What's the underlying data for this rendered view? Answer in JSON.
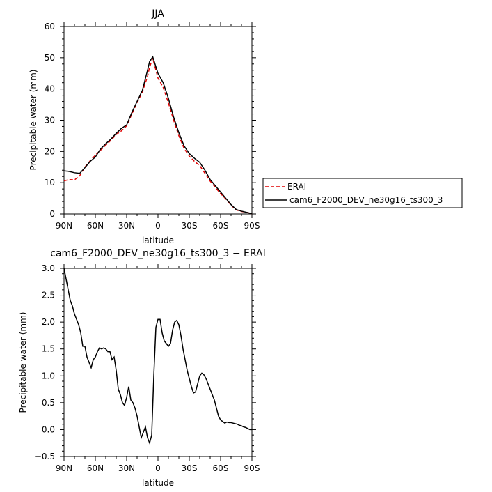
{
  "chart_data": [
    {
      "type": "line",
      "title": "JJA",
      "xlabel": "latitude",
      "ylabel": "Precipitable water (mm)",
      "xlim": [
        90,
        -90
      ],
      "ylim": [
        0,
        60
      ],
      "x_ticks": [
        90,
        60,
        30,
        0,
        -30,
        -60,
        -90
      ],
      "x_tick_labels": [
        "90N",
        "60N",
        "30N",
        "0",
        "30S",
        "60S",
        "90S"
      ],
      "y_ticks": [
        0,
        10,
        20,
        30,
        40,
        50,
        60
      ],
      "y_tick_labels": [
        "0",
        "10",
        "20",
        "30",
        "40",
        "50",
        "60"
      ],
      "legend": "right",
      "series": [
        {
          "name": "ERAI",
          "color": "#e00000",
          "dash": "dashed",
          "x": [
            90,
            85,
            80,
            75,
            70,
            65,
            60,
            55,
            50,
            45,
            40,
            35,
            30,
            25,
            20,
            15,
            10,
            8,
            5,
            0,
            -5,
            -10,
            -15,
            -20,
            -25,
            -30,
            -35,
            -40,
            -45,
            -50,
            -55,
            -60,
            -65,
            -70,
            -75,
            -80,
            -85,
            -90
          ],
          "y": [
            10.6,
            11.0,
            10.9,
            12.2,
            15.0,
            17.0,
            18.8,
            20.4,
            22.0,
            23.6,
            25.4,
            26.6,
            28.2,
            32.0,
            35.6,
            39.0,
            44.0,
            47.0,
            49.8,
            43.5,
            40.5,
            35.5,
            30.0,
            25.0,
            21.0,
            18.5,
            16.8,
            15.5,
            13.0,
            10.5,
            8.5,
            6.5,
            4.8,
            2.8,
            1.3,
            0.8,
            0.5,
            0.1
          ]
        },
        {
          "name": "cam6_F2000_DEV_ne30g16_ts300_3",
          "color": "#000000",
          "dash": "solid",
          "x": [
            90,
            85,
            80,
            75,
            70,
            65,
            60,
            55,
            50,
            45,
            40,
            35,
            30,
            25,
            20,
            15,
            10,
            8,
            5,
            0,
            -5,
            -10,
            -15,
            -20,
            -25,
            -30,
            -35,
            -40,
            -45,
            -50,
            -55,
            -60,
            -65,
            -70,
            -75,
            -80,
            -85,
            -90
          ],
          "y": [
            13.8,
            13.6,
            13.2,
            13.0,
            14.8,
            16.8,
            18.2,
            20.8,
            22.5,
            24.0,
            25.8,
            27.4,
            28.5,
            32.5,
            36.0,
            39.5,
            46.0,
            48.8,
            50.3,
            45.0,
            42.0,
            37.0,
            31.0,
            26.0,
            21.8,
            19.3,
            17.8,
            16.5,
            14.0,
            11.0,
            9.0,
            7.0,
            5.0,
            3.0,
            1.4,
            0.9,
            0.5,
            0.1
          ]
        }
      ]
    },
    {
      "type": "line",
      "title": "cam6_F2000_DEV_ne30g16_ts300_3 − ERAI",
      "xlabel": "latitude",
      "ylabel": "Precipitable water (mm)",
      "xlim": [
        90,
        -90
      ],
      "ylim": [
        -0.5,
        3.0
      ],
      "x_ticks": [
        90,
        60,
        30,
        0,
        -30,
        -60,
        -90
      ],
      "x_tick_labels": [
        "90N",
        "60N",
        "30N",
        "0",
        "30S",
        "60S",
        "90S"
      ],
      "y_ticks": [
        -0.5,
        0,
        0.5,
        1.0,
        1.5,
        2.0,
        2.5,
        3.0
      ],
      "y_tick_labels": [
        "−0.5",
        "0.0",
        "0.5",
        "1.0",
        "1.5",
        "2.0",
        "2.5",
        "3.0"
      ],
      "series": [
        {
          "color": "#000000",
          "x": [
            90,
            88,
            86,
            84,
            82,
            80,
            78,
            76,
            74,
            72,
            70,
            68,
            66,
            64,
            62,
            60,
            58,
            56,
            54,
            52,
            50,
            48,
            46,
            44,
            42,
            40,
            38,
            36,
            34,
            32,
            30,
            28,
            26,
            24,
            22,
            20,
            18,
            16,
            14,
            12,
            10,
            8,
            6,
            4,
            2,
            0,
            -2,
            -4,
            -6,
            -8,
            -10,
            -12,
            -14,
            -16,
            -18,
            -20,
            -22,
            -24,
            -26,
            -28,
            -30,
            -32,
            -34,
            -36,
            -38,
            -40,
            -42,
            -44,
            -46,
            -48,
            -50,
            -52,
            -54,
            -56,
            -58,
            -60,
            -62,
            -64,
            -66,
            -68,
            -70,
            -72,
            -74,
            -76,
            -78,
            -80,
            -82,
            -84,
            -86,
            -88,
            -90
          ],
          "y": [
            3.0,
            2.8,
            2.6,
            2.4,
            2.3,
            2.15,
            2.05,
            1.95,
            1.8,
            1.55,
            1.55,
            1.35,
            1.25,
            1.15,
            1.3,
            1.35,
            1.45,
            1.52,
            1.5,
            1.52,
            1.5,
            1.45,
            1.45,
            1.3,
            1.35,
            1.1,
            0.75,
            0.65,
            0.5,
            0.45,
            0.6,
            0.8,
            0.55,
            0.5,
            0.4,
            0.25,
            0.05,
            -0.15,
            -0.05,
            0.05,
            -0.15,
            -0.25,
            -0.1,
            1.0,
            1.9,
            2.05,
            2.05,
            1.8,
            1.65,
            1.6,
            1.55,
            1.6,
            1.85,
            2.0,
            2.03,
            1.95,
            1.75,
            1.5,
            1.3,
            1.1,
            0.95,
            0.8,
            0.68,
            0.7,
            0.85,
            1.0,
            1.05,
            1.02,
            0.95,
            0.85,
            0.75,
            0.65,
            0.55,
            0.4,
            0.25,
            0.18,
            0.15,
            0.12,
            0.14,
            0.13,
            0.13,
            0.12,
            0.11,
            0.1,
            0.08,
            0.07,
            0.05,
            0.04,
            0.02,
            0.0,
            0.0
          ]
        }
      ]
    }
  ]
}
